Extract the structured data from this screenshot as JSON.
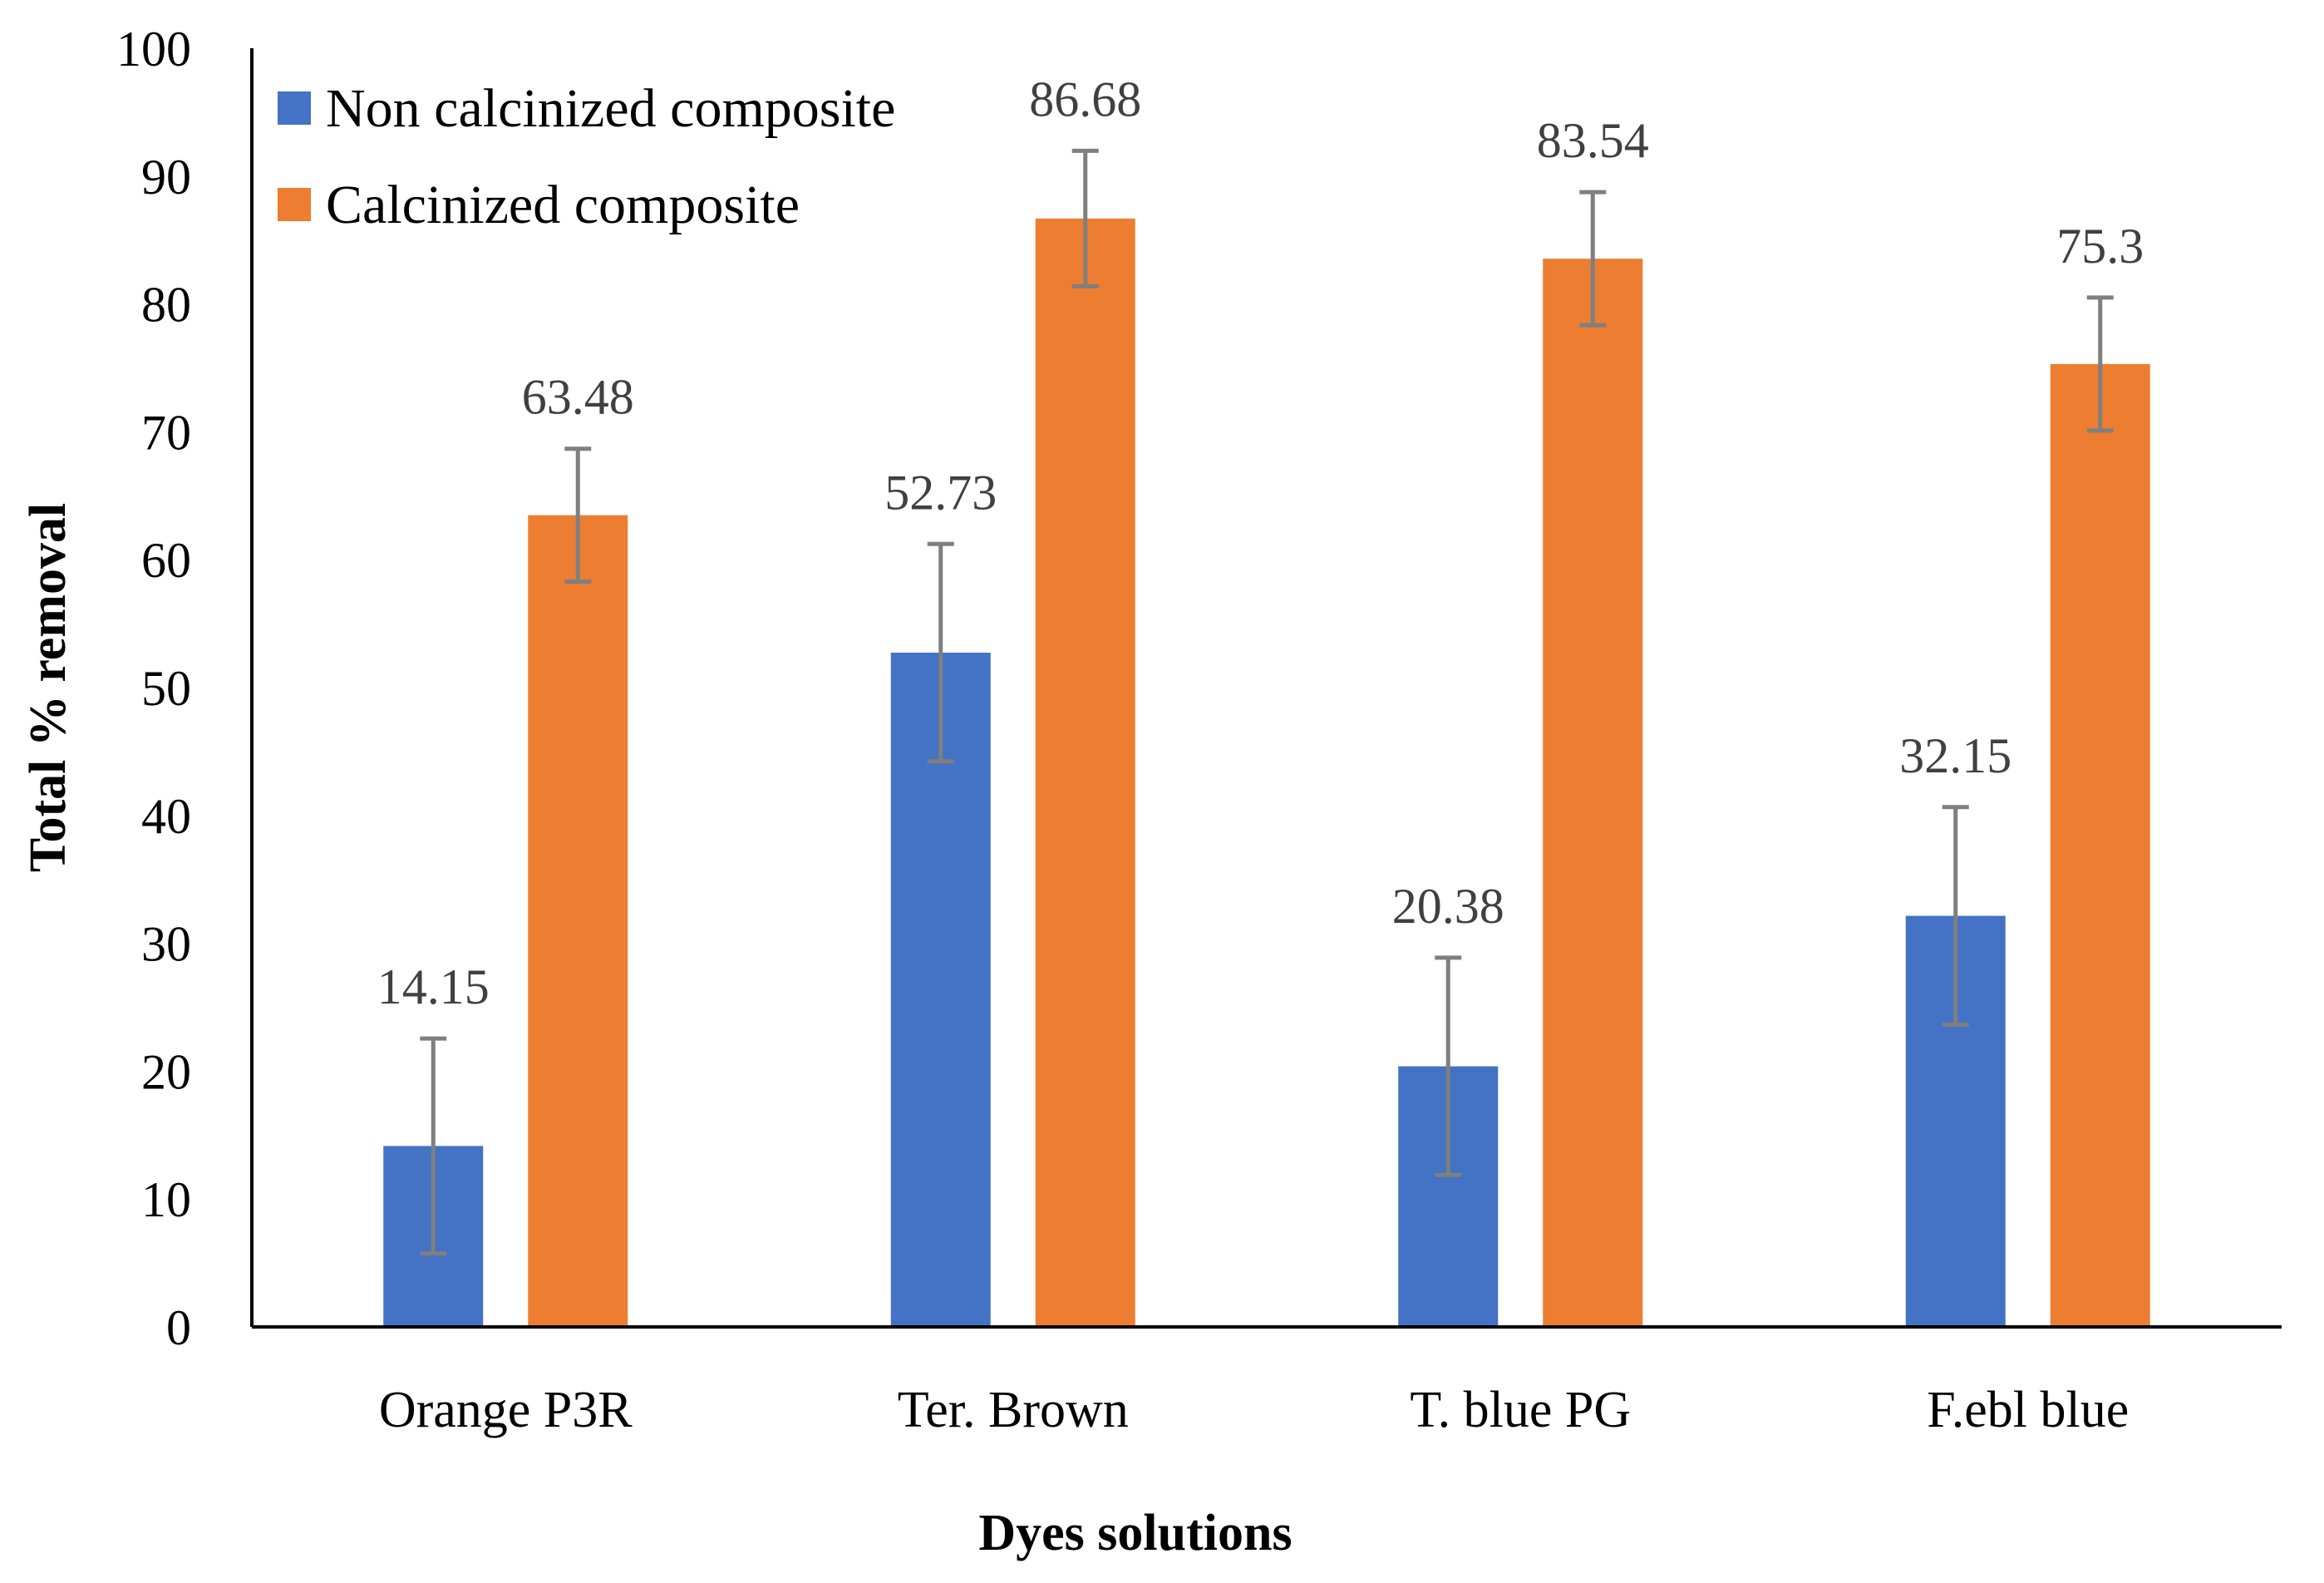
{
  "chart_data": {
    "type": "bar",
    "title": "",
    "xlabel": "Dyes solutions",
    "ylabel": "Total % removal",
    "categories": [
      "Orange P3R",
      "Ter. Brown",
      "T. blue PG",
      "F.ebl blue"
    ],
    "series": [
      {
        "name": "Non calcinized composite",
        "color": "#4472C4",
        "values": [
          14.15,
          52.73,
          20.38,
          32.15
        ],
        "labels": [
          "14.15",
          "52.73",
          "20.38",
          "32.15"
        ],
        "errors": [
          8.4,
          8.5,
          8.5,
          8.5
        ]
      },
      {
        "name": "Calcinized composite",
        "color": "#ED7D31",
        "values": [
          63.48,
          86.68,
          83.54,
          75.3
        ],
        "labels": [
          "63.48",
          "86.68",
          "83.54",
          "75.3"
        ],
        "errors": [
          5.2,
          5.3,
          5.2,
          5.2
        ]
      }
    ],
    "ylim": [
      0,
      100
    ],
    "yticks": [
      "0",
      "10",
      "20",
      "30",
      "40",
      "50",
      "60",
      "70",
      "80",
      "90",
      "100"
    ],
    "grid": false,
    "legend_position": "top-left",
    "error_bar_color": "#7F7F7F"
  }
}
